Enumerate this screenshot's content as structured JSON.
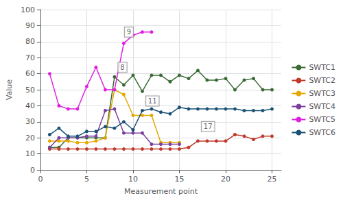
{
  "chart_data": {
    "type": "line",
    "xlabel": "Measurement point",
    "ylabel": "Value",
    "xlim": [
      0,
      26
    ],
    "ylim": [
      0,
      100
    ],
    "xticks": [
      0,
      5,
      10,
      15,
      20,
      25
    ],
    "yticks": [
      0,
      10,
      20,
      30,
      40,
      50,
      60,
      70,
      80,
      90,
      100
    ],
    "grid": true,
    "legend": "right",
    "marker": "circle",
    "series": [
      {
        "name": "SWTC1",
        "color": "#3a6b35",
        "x": [
          1,
          2,
          3,
          4,
          5,
          6,
          7,
          8,
          9,
          10,
          11,
          12,
          13,
          14,
          15,
          16,
          17,
          18,
          19,
          20,
          21,
          22,
          23,
          24,
          25
        ],
        "values": [
          14,
          14,
          20,
          20,
          20,
          20,
          20,
          58,
          53,
          59,
          49,
          59,
          59,
          55,
          59,
          57,
          62,
          56,
          56,
          57,
          50,
          56,
          57,
          50,
          50
        ]
      },
      {
        "name": "SWTC2",
        "color": "#c0392b",
        "x": [
          1,
          2,
          3,
          4,
          5,
          6,
          7,
          8,
          9,
          10,
          11,
          12,
          13,
          14,
          15,
          16,
          17,
          18,
          19,
          20,
          21,
          22,
          23,
          24,
          25
        ],
        "values": [
          13,
          13,
          13,
          13,
          13,
          13,
          13,
          13,
          13,
          13,
          13,
          13,
          13,
          13,
          13,
          14,
          18,
          18,
          18,
          18,
          22,
          21,
          19,
          21,
          21
        ]
      },
      {
        "name": "SWTC3",
        "color": "#e5a800",
        "x": [
          1,
          2,
          3,
          4,
          5,
          6,
          7,
          8,
          9,
          10,
          11,
          12,
          13,
          14,
          15
        ],
        "values": [
          18,
          18,
          18,
          17,
          17,
          18,
          20,
          50,
          47,
          34,
          34,
          34,
          17,
          17,
          17
        ]
      },
      {
        "name": "SWTC4",
        "color": "#7b3fa0",
        "x": [
          1,
          2,
          3,
          4,
          5,
          6,
          7,
          8,
          9,
          10,
          11,
          12,
          13,
          14,
          15
        ],
        "values": [
          14,
          20,
          20,
          20,
          21,
          21,
          37,
          38,
          23,
          23,
          23,
          16,
          16,
          16,
          16
        ]
      },
      {
        "name": "SWTC5",
        "color": "#e020e0",
        "x": [
          1,
          2,
          3,
          4,
          5,
          6,
          7,
          8,
          9,
          10,
          11,
          12
        ],
        "values": [
          60,
          40,
          38,
          38,
          52,
          64,
          50,
          50,
          79,
          84,
          86,
          86
        ]
      },
      {
        "name": "SWTC6",
        "color": "#1a5276",
        "x": [
          1,
          2,
          3,
          4,
          5,
          6,
          7,
          8,
          9,
          10,
          11,
          12,
          13,
          14,
          15,
          16,
          17,
          18,
          19,
          20,
          21,
          22,
          23,
          24,
          25
        ],
        "values": [
          22,
          26,
          21,
          21,
          24,
          24,
          27,
          26,
          30,
          25,
          37,
          38,
          36,
          35,
          39,
          38,
          38,
          38,
          38,
          38,
          38,
          37,
          37,
          37,
          38
        ]
      }
    ],
    "annotations": [
      {
        "text": "9",
        "x": 9.1,
        "y": 83
      },
      {
        "text": "8",
        "x": 8.4,
        "y": 61
      },
      {
        "text": "11",
        "x": 11.4,
        "y": 40
      },
      {
        "text": "17",
        "x": 17.4,
        "y": 24
      }
    ]
  }
}
